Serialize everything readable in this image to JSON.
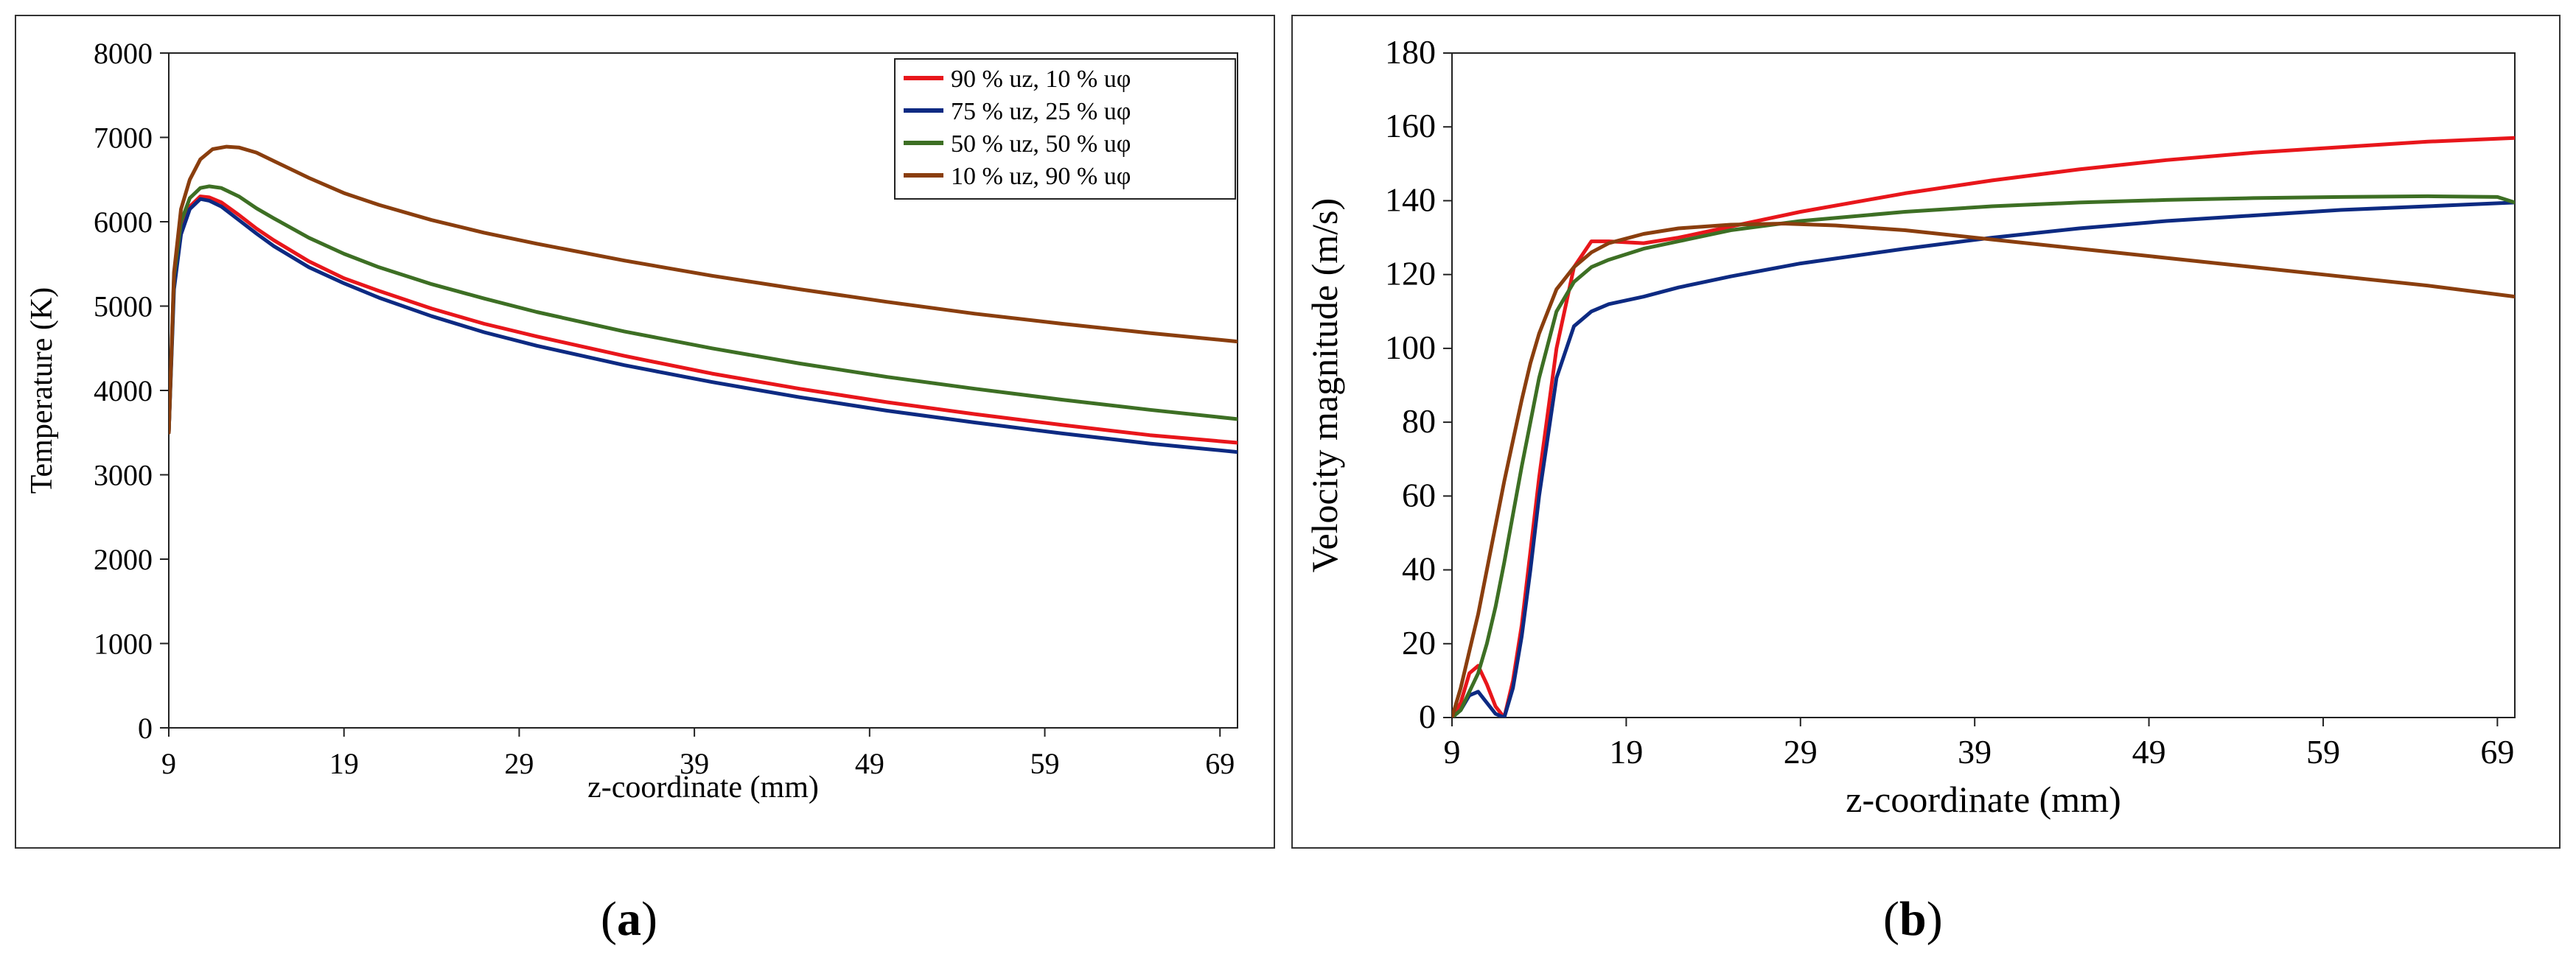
{
  "figure_labels": {
    "a": {
      "open": "(",
      "letter": "a",
      "close": ")"
    },
    "b": {
      "open": "(",
      "letter": "b",
      "close": ")"
    }
  },
  "colors": {
    "series_red": "#e8161b",
    "series_navy": "#0d2a82",
    "series_green": "#3d6f24",
    "series_brown": "#8a3e0e"
  },
  "chart_data": [
    {
      "type": "line",
      "id": "a",
      "title": "",
      "xlabel": "z-coordinate (mm)",
      "ylabel": "Temperature (K)",
      "xlim": [
        9,
        70
      ],
      "ylim": [
        0,
        8000
      ],
      "xticks": [
        9,
        19,
        29,
        39,
        49,
        59,
        69
      ],
      "yticks": [
        0,
        1000,
        2000,
        3000,
        4000,
        5000,
        6000,
        7000,
        8000
      ],
      "legend_position": "top-right",
      "series": [
        {
          "name": "90 % uz, 10 % uφ",
          "color": "#e8161b",
          "x": [
            9,
            9.3,
            9.7,
            10.2,
            10.8,
            11.3,
            12,
            13,
            14,
            15,
            17,
            19,
            21,
            24,
            27,
            30,
            35,
            40,
            45,
            50,
            55,
            60,
            65,
            70
          ],
          "y": [
            3500,
            5300,
            5900,
            6180,
            6300,
            6290,
            6230,
            6080,
            5920,
            5780,
            5530,
            5330,
            5180,
            4970,
            4790,
            4640,
            4410,
            4200,
            4020,
            3860,
            3720,
            3590,
            3470,
            3380
          ]
        },
        {
          "name": "75 % uz, 25 % uφ",
          "color": "#0d2a82",
          "x": [
            9,
            9.3,
            9.7,
            10.2,
            10.8,
            11.3,
            12,
            13,
            14,
            15,
            17,
            19,
            21,
            24,
            27,
            30,
            35,
            40,
            45,
            50,
            55,
            60,
            65,
            70
          ],
          "y": [
            3500,
            5200,
            5850,
            6150,
            6270,
            6250,
            6180,
            6020,
            5860,
            5710,
            5460,
            5270,
            5100,
            4880,
            4690,
            4530,
            4300,
            4100,
            3920,
            3760,
            3620,
            3490,
            3370,
            3270
          ]
        },
        {
          "name": "50 % uz, 50 % uφ",
          "color": "#3d6f24",
          "x": [
            9,
            9.3,
            9.7,
            10.2,
            10.8,
            11.3,
            12,
            13,
            14,
            15,
            17,
            19,
            21,
            24,
            27,
            30,
            35,
            40,
            45,
            50,
            55,
            60,
            65,
            70
          ],
          "y": [
            3500,
            5350,
            6000,
            6280,
            6400,
            6420,
            6400,
            6300,
            6160,
            6040,
            5810,
            5620,
            5460,
            5260,
            5090,
            4930,
            4700,
            4500,
            4320,
            4160,
            4020,
            3890,
            3770,
            3660
          ]
        },
        {
          "name": "10 % uz, 90 % uφ",
          "color": "#8a3e0e",
          "x": [
            9,
            9.3,
            9.7,
            10.2,
            10.8,
            11.5,
            12.3,
            13,
            14,
            15,
            17,
            19,
            21,
            24,
            27,
            30,
            35,
            40,
            45,
            50,
            55,
            60,
            65,
            70
          ],
          "y": [
            3500,
            5400,
            6150,
            6500,
            6740,
            6860,
            6890,
            6880,
            6820,
            6720,
            6520,
            6340,
            6200,
            6020,
            5870,
            5740,
            5540,
            5360,
            5200,
            5050,
            4910,
            4790,
            4680,
            4580
          ]
        }
      ]
    },
    {
      "type": "line",
      "id": "b",
      "title": "",
      "xlabel": "z-coordinate (mm)",
      "ylabel": "Velocity magnitude (m/s)",
      "xlim": [
        9,
        70
      ],
      "ylim": [
        0,
        180
      ],
      "xticks": [
        9,
        19,
        29,
        39,
        49,
        59,
        69
      ],
      "yticks": [
        0,
        20,
        40,
        60,
        80,
        100,
        120,
        140,
        160,
        180
      ],
      "series": [
        {
          "name": "90 % uz, 10 % uφ",
          "color": "#e8161b",
          "x": [
            9,
            9.5,
            10,
            10.5,
            11,
            11.5,
            12,
            12.5,
            13,
            13.5,
            14,
            15,
            16,
            17,
            18,
            20,
            22,
            25,
            29,
            35,
            40,
            45,
            50,
            55,
            60,
            65,
            70
          ],
          "y": [
            0,
            4,
            12,
            14,
            9,
            3,
            0,
            10,
            25,
            45,
            65,
            100,
            122,
            129,
            129,
            128.5,
            130,
            133,
            137,
            142,
            145.5,
            148.5,
            151,
            153,
            154.5,
            156,
            157
          ]
        },
        {
          "name": "75 % uz, 25 % uφ",
          "color": "#0d2a82",
          "x": [
            9,
            9.5,
            10,
            10.5,
            11,
            11.5,
            12,
            12.5,
            13,
            13.5,
            14,
            15,
            16,
            17,
            18,
            20,
            22,
            25,
            29,
            35,
            40,
            45,
            50,
            55,
            60,
            65,
            70
          ],
          "y": [
            0,
            2,
            6,
            7,
            4,
            1,
            0,
            8,
            22,
            40,
            60,
            92,
            106,
            110,
            112,
            114,
            116.5,
            119.5,
            123,
            127,
            130,
            132.5,
            134.5,
            136,
            137.5,
            138.5,
            139.5
          ]
        },
        {
          "name": "50 % uz, 50 % uφ",
          "color": "#3d6f24",
          "x": [
            9,
            9.5,
            10,
            10.5,
            11,
            11.5,
            12,
            12.5,
            13,
            13.5,
            14,
            15,
            16,
            17,
            18,
            20,
            22,
            25,
            29,
            35,
            40,
            45,
            50,
            55,
            60,
            65,
            69,
            70
          ],
          "y": [
            0,
            2,
            7,
            12,
            20,
            30,
            42,
            55,
            68,
            80,
            92,
            110,
            118,
            122,
            124,
            127,
            129,
            132,
            134.5,
            137,
            138.5,
            139.5,
            140.2,
            140.7,
            141,
            141.2,
            141,
            139.5
          ]
        },
        {
          "name": "10 % uz, 90 % uφ",
          "color": "#8a3e0e",
          "x": [
            9,
            9.5,
            10,
            10.5,
            11,
            11.5,
            12,
            12.5,
            13,
            13.5,
            14,
            15,
            16,
            17,
            18,
            20,
            22,
            25,
            28,
            31,
            35,
            40,
            45,
            50,
            55,
            60,
            65,
            70
          ],
          "y": [
            0,
            8,
            18,
            28,
            40,
            52,
            64,
            75,
            86,
            96,
            104,
            116,
            122,
            126,
            128.5,
            131,
            132.5,
            133.5,
            133.8,
            133.3,
            132,
            129.5,
            127,
            124.5,
            122,
            119.5,
            117,
            114
          ]
        }
      ]
    }
  ]
}
